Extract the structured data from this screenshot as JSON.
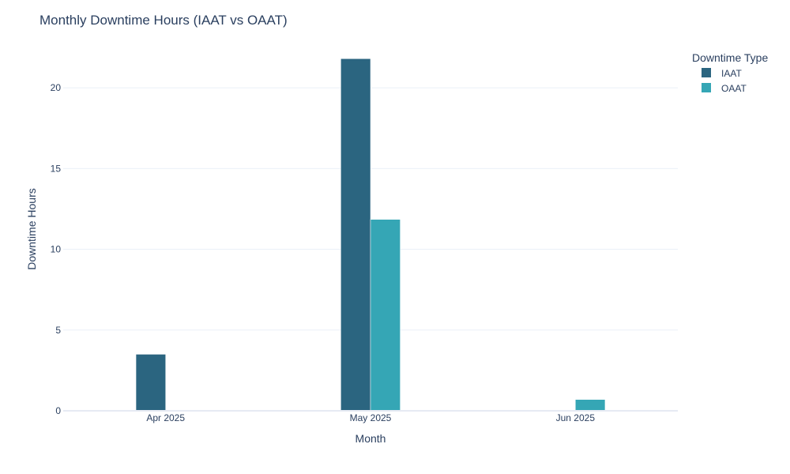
{
  "chart_data": {
    "type": "bar",
    "title": "Monthly Downtime Hours (IAAT vs OAAT)",
    "xlabel": "Month",
    "ylabel": "Downtime Hours",
    "categories": [
      "Apr 2025",
      "May 2025",
      "Jun 2025"
    ],
    "ylim": [
      0,
      22.5
    ],
    "yticks": [
      0,
      5,
      10,
      15,
      20
    ],
    "grid": true,
    "legend_title": "Downtime Type",
    "legend_placement": "top-right",
    "series": [
      {
        "name": "IAAT",
        "color": "#2b6580",
        "values": [
          3.5,
          21.8,
          0
        ]
      },
      {
        "name": "OAAT",
        "color": "#35a6b5",
        "values": [
          0,
          11.85,
          0.7
        ]
      }
    ]
  }
}
